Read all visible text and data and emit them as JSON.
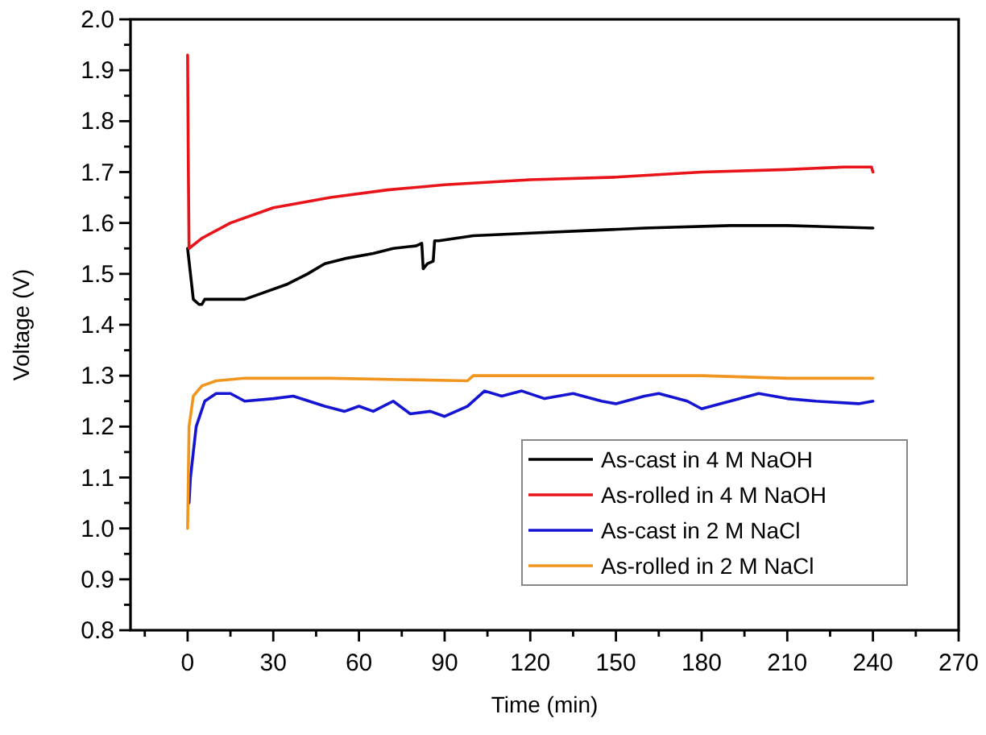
{
  "chart_data": {
    "type": "line",
    "xlabel": "Time (min)",
    "ylabel": "Voltage (V)",
    "xlim": [
      -20,
      270
    ],
    "xticks": [
      {
        "value": -15,
        "label": null
      },
      0,
      {
        "value": 15,
        "label": null
      },
      30,
      {
        "value": 45,
        "label": null
      },
      60,
      {
        "value": 75,
        "label": null
      },
      90,
      {
        "value": 105,
        "label": null
      },
      120,
      {
        "value": 135,
        "label": null
      },
      150,
      {
        "value": 165,
        "label": null
      },
      180,
      {
        "value": 195,
        "label": null
      },
      210,
      {
        "value": 225,
        "label": null
      },
      240,
      {
        "value": 255,
        "label": null
      },
      270
    ],
    "ylim": [
      0.8,
      2.0
    ],
    "yticks": [
      0.8,
      0.9,
      "1.0",
      1.1,
      1.2,
      1.3,
      1.4,
      1.5,
      1.6,
      1.7,
      1.8,
      1.9,
      "2.0"
    ],
    "legend": "bottom right",
    "grid": false,
    "marker": "none",
    "line_style": "solid",
    "series": [
      {
        "name": "As-cast in 4 M NaOH",
        "color": "#000000",
        "x": [
          0,
          1,
          2,
          4,
          5,
          6,
          10,
          20,
          25,
          35,
          42,
          48,
          55,
          65,
          72,
          80,
          82,
          82.5,
          84,
          86,
          86.5,
          88,
          100,
          120,
          140,
          160,
          190,
          210,
          240
        ],
        "values": [
          1.55,
          1.5,
          1.45,
          1.44,
          1.44,
          1.45,
          1.45,
          1.45,
          1.46,
          1.48,
          1.5,
          1.52,
          1.53,
          1.54,
          1.55,
          1.555,
          1.56,
          1.51,
          1.52,
          1.525,
          1.565,
          1.565,
          1.575,
          1.58,
          1.585,
          1.59,
          1.595,
          1.595,
          1.59
        ]
      },
      {
        "name": "As-rolled in 4 M NaOH",
        "color": "#e8141a",
        "x": [
          0,
          0.2,
          0.5,
          5,
          15,
          30,
          50,
          70,
          90,
          120,
          150,
          180,
          210,
          230,
          239.5,
          240
        ],
        "values": [
          1.93,
          1.75,
          1.55,
          1.57,
          1.6,
          1.63,
          1.65,
          1.665,
          1.675,
          1.685,
          1.69,
          1.7,
          1.705,
          1.71,
          1.71,
          1.7
        ]
      },
      {
        "name": "As-cast in 2 M NaCl",
        "color": "#1414d2",
        "x": [
          0.5,
          1,
          3,
          6,
          10,
          15,
          20,
          30,
          37,
          48,
          55,
          60,
          65,
          72,
          78,
          85,
          90,
          98,
          104,
          110,
          117,
          125,
          135,
          145,
          150,
          160,
          165,
          175,
          180,
          190,
          200,
          210,
          220,
          235,
          240
        ],
        "values": [
          1.05,
          1.1,
          1.2,
          1.25,
          1.265,
          1.265,
          1.25,
          1.255,
          1.26,
          1.24,
          1.23,
          1.24,
          1.23,
          1.25,
          1.225,
          1.23,
          1.22,
          1.24,
          1.27,
          1.26,
          1.27,
          1.255,
          1.265,
          1.25,
          1.245,
          1.26,
          1.265,
          1.25,
          1.235,
          1.25,
          1.265,
          1.255,
          1.25,
          1.245,
          1.25
        ]
      },
      {
        "name": "As-rolled in 2 M NaCl",
        "color": "#f0961e",
        "x": [
          0,
          0.5,
          2,
          5,
          10,
          20,
          50,
          98,
          100,
          140,
          180,
          210,
          240
        ],
        "values": [
          1.0,
          1.2,
          1.26,
          1.28,
          1.29,
          1.295,
          1.295,
          1.29,
          1.3,
          1.3,
          1.3,
          1.295,
          1.295
        ]
      }
    ]
  }
}
